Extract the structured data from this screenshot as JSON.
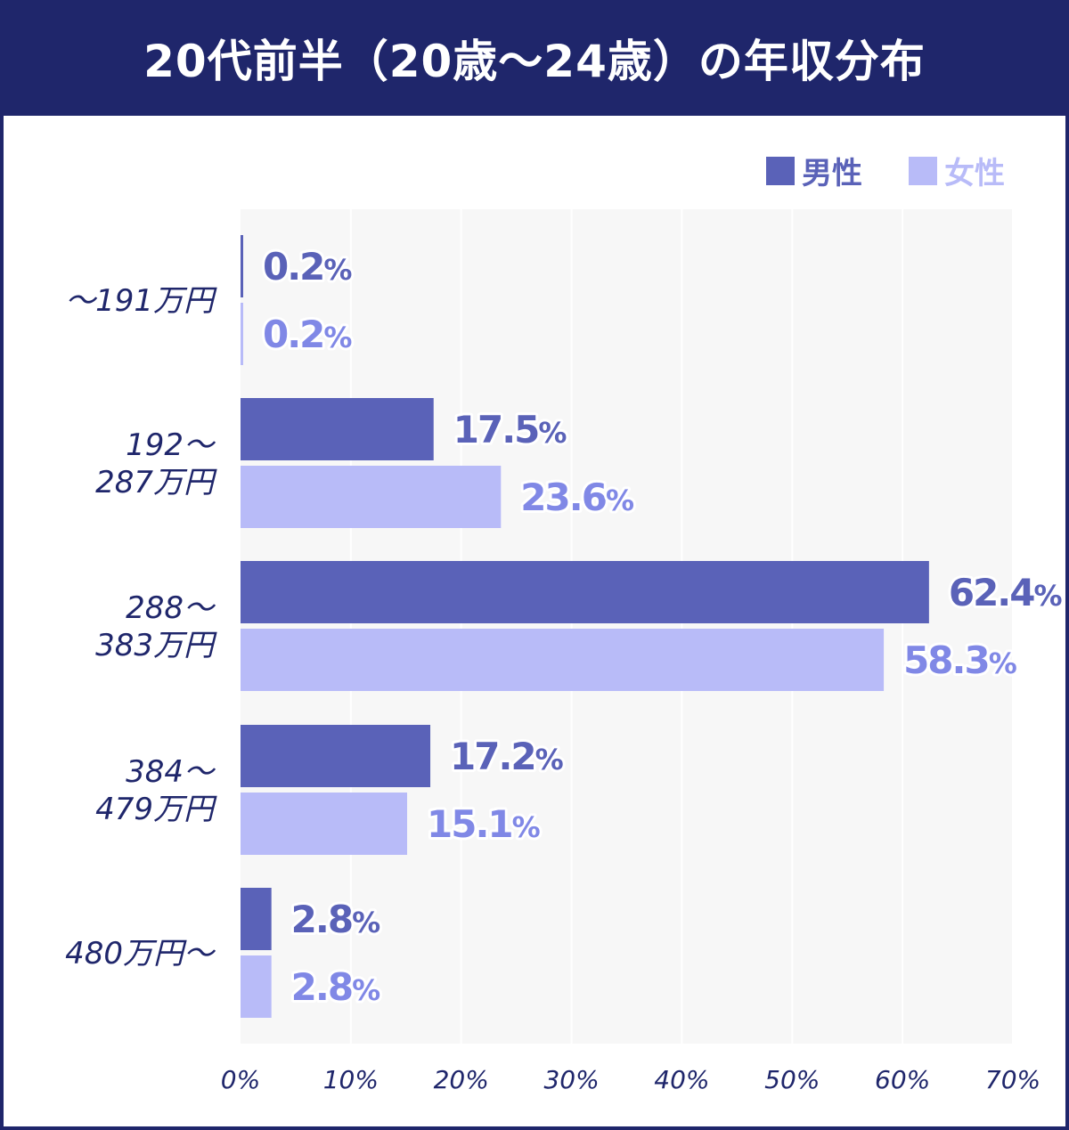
{
  "header": {
    "title": "20代前半（20歳〜24歳）の年収分布"
  },
  "legend": {
    "male_label": "男性",
    "female_label": "女性"
  },
  "colors": {
    "header_bg": "#1f266b",
    "male": "#5a62b8",
    "female": "#b8bbf8",
    "male_text": "#5a62b8",
    "female_text": "#8088e6",
    "plot_bg": "#f7f7f7",
    "grid": "#ffffff",
    "axis_text": "#1f266b"
  },
  "chart_data": {
    "type": "bar",
    "orientation": "horizontal",
    "title": "20代前半（20歳〜24歳）の年収分布",
    "categories": [
      [
        "〜191万円"
      ],
      [
        "192〜",
        "287万円"
      ],
      [
        "288〜",
        "383万円"
      ],
      [
        "384〜",
        "479万円"
      ],
      [
        "480万円〜"
      ]
    ],
    "series": [
      {
        "name": "男性",
        "values": [
          0.2,
          17.5,
          62.4,
          17.2,
          2.8
        ]
      },
      {
        "name": "女性",
        "values": [
          0.2,
          23.6,
          58.3,
          15.1,
          2.8
        ]
      }
    ],
    "value_suffix": "%",
    "xlim": [
      0,
      70
    ],
    "xticks": [
      "0%",
      "10%",
      "20%",
      "30%",
      "40%",
      "50%",
      "60%",
      "70%"
    ],
    "grid": true,
    "legend_position": "top-right"
  }
}
